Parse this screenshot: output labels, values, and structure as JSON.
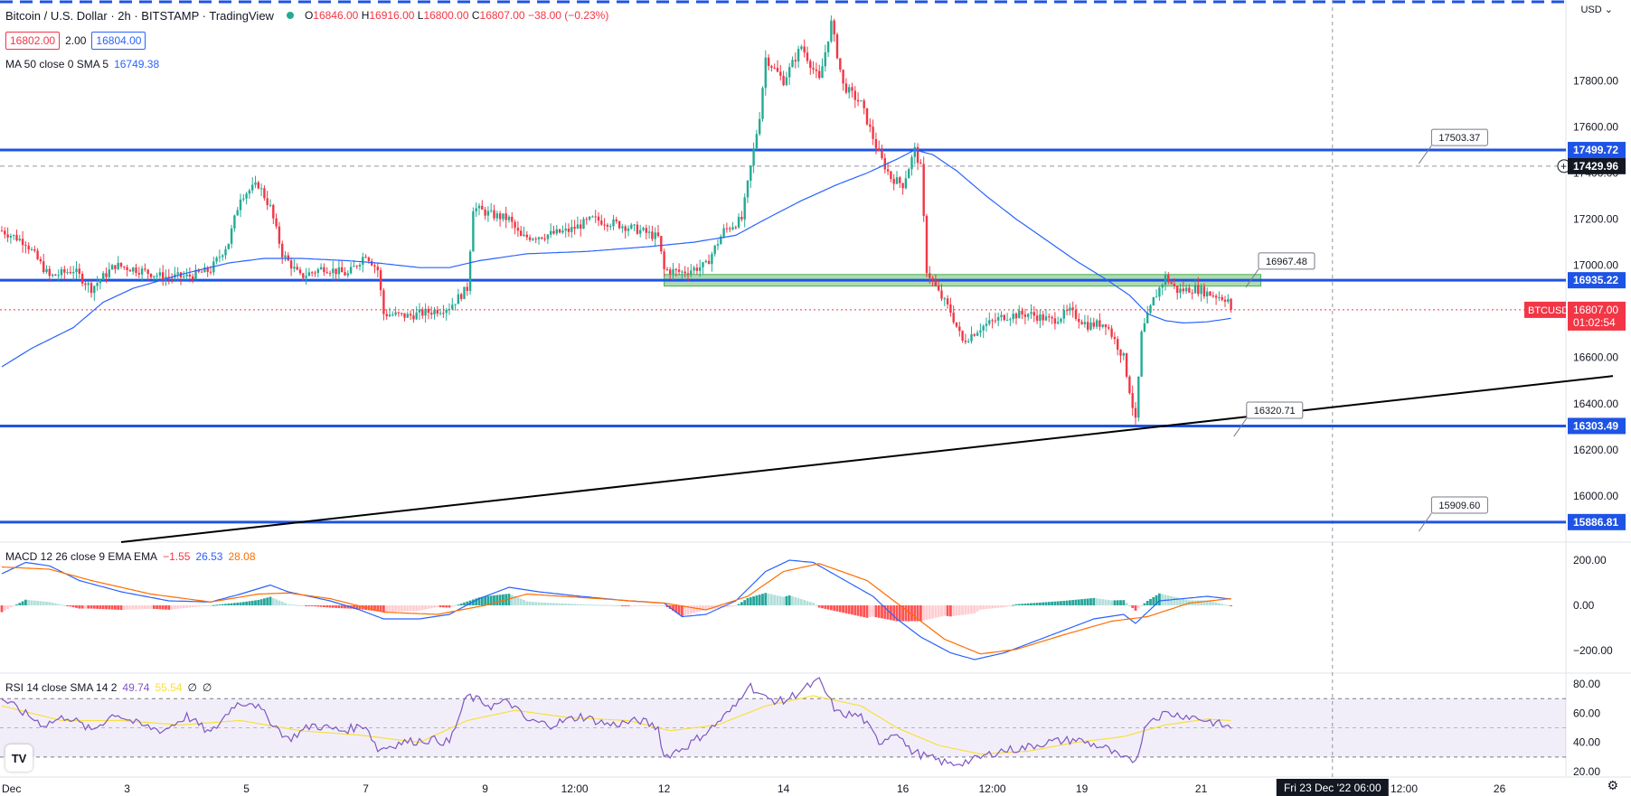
{
  "header": {
    "title": "Bitcoin / U.S. Dollar · 2h · BITSTAMP · TradingView",
    "open_label": "O",
    "open": "16846.00",
    "high_label": "H",
    "high": "16916.00",
    "low_label": "L",
    "low": "16800.00",
    "close_label": "C",
    "close": "16807.00",
    "change": "−38.00 (−0.23%)",
    "sell_price": "16802.00",
    "spread": "2.00",
    "buy_price": "16804.00",
    "ma_label": "MA 50 close 0 SMA 5",
    "ma_value": "16749.38",
    "currency": "USD"
  },
  "colors": {
    "up": "#22ab94",
    "down": "#f23645",
    "ma": "#2962ff",
    "hline": "#1e53e5",
    "trend": "#000000",
    "macd": "#2962ff",
    "signal": "#ff6d00",
    "rsi": "#7e57c2",
    "rsi_ma": "#f7e03c"
  },
  "chart_data": [
    {
      "type": "candlestick",
      "series_name": "BTCUSD",
      "ylim": [
        15800,
        18150
      ],
      "y_ticks": [
        "17800.00",
        "17600.00",
        "17400.00",
        "17200.00",
        "17000.00",
        "16800.00",
        "16600.00",
        "16400.00",
        "16200.00",
        "16000.00"
      ],
      "x_ticks": [
        "Dec",
        "3",
        "5",
        "7",
        "9",
        "12:00",
        "12",
        "14",
        "16",
        "12:00",
        "19",
        "21",
        "12:00",
        "26"
      ],
      "x_tick_index": [
        0,
        42,
        82,
        122,
        162,
        192,
        222,
        262,
        302,
        332,
        362,
        402,
        470,
        502
      ],
      "crosshair_label": "Fri 23 Dec '22  06:00",
      "crosshair_index": 446,
      "anchors": [
        [
          0,
          17150
        ],
        [
          8,
          17100
        ],
        [
          16,
          16950
        ],
        [
          24,
          16980
        ],
        [
          30,
          16900
        ],
        [
          38,
          17000
        ],
        [
          46,
          16980
        ],
        [
          54,
          16950
        ],
        [
          62,
          16950
        ],
        [
          70,
          16980
        ],
        [
          76,
          17100
        ],
        [
          80,
          17300
        ],
        [
          86,
          17350
        ],
        [
          90,
          17250
        ],
        [
          94,
          17050
        ],
        [
          100,
          16950
        ],
        [
          108,
          16990
        ],
        [
          116,
          16960
        ],
        [
          122,
          17050
        ],
        [
          126,
          16980
        ],
        [
          128,
          16790
        ],
        [
          136,
          16780
        ],
        [
          144,
          16800
        ],
        [
          150,
          16820
        ],
        [
          156,
          16900
        ],
        [
          158,
          17250
        ],
        [
          164,
          17220
        ],
        [
          170,
          17200
        ],
        [
          174,
          17120
        ],
        [
          182,
          17130
        ],
        [
          190,
          17150
        ],
        [
          198,
          17200
        ],
        [
          206,
          17180
        ],
        [
          214,
          17150
        ],
        [
          220,
          17120
        ],
        [
          222,
          16980
        ],
        [
          228,
          16970
        ],
        [
          236,
          17000
        ],
        [
          242,
          17150
        ],
        [
          248,
          17200
        ],
        [
          252,
          17500
        ],
        [
          254,
          17650
        ],
        [
          256,
          17900
        ],
        [
          262,
          17800
        ],
        [
          268,
          17950
        ],
        [
          274,
          17800
        ],
        [
          278,
          18050
        ],
        [
          282,
          17780
        ],
        [
          288,
          17700
        ],
        [
          294,
          17480
        ],
        [
          298,
          17380
        ],
        [
          302,
          17350
        ],
        [
          306,
          17500
        ],
        [
          308,
          17420
        ],
        [
          310,
          16980
        ],
        [
          314,
          16880
        ],
        [
          318,
          16800
        ],
        [
          322,
          16670
        ],
        [
          328,
          16730
        ],
        [
          336,
          16780
        ],
        [
          344,
          16790
        ],
        [
          352,
          16760
        ],
        [
          358,
          16800
        ],
        [
          364,
          16740
        ],
        [
          370,
          16750
        ],
        [
          376,
          16600
        ],
        [
          380,
          16320
        ],
        [
          382,
          16700
        ],
        [
          386,
          16850
        ],
        [
          390,
          16950
        ],
        [
          394,
          16890
        ],
        [
          400,
          16900
        ],
        [
          404,
          16880
        ],
        [
          412,
          16850
        ]
      ],
      "last_index": 412,
      "last_close": 16807.0,
      "last_label": "BTCUSD",
      "last_value": "16807.00",
      "last_timer": "01:02:54",
      "ma_anchors": [
        [
          0,
          16560
        ],
        [
          10,
          16640
        ],
        [
          24,
          16730
        ],
        [
          34,
          16840
        ],
        [
          44,
          16900
        ],
        [
          52,
          16930
        ],
        [
          60,
          16960
        ],
        [
          76,
          17010
        ],
        [
          88,
          17030
        ],
        [
          100,
          17030
        ],
        [
          116,
          17020
        ],
        [
          126,
          17010
        ],
        [
          140,
          16990
        ],
        [
          150,
          16990
        ],
        [
          160,
          17020
        ],
        [
          176,
          17050
        ],
        [
          196,
          17060
        ],
        [
          216,
          17080
        ],
        [
          232,
          17100
        ],
        [
          246,
          17130
        ],
        [
          256,
          17200
        ],
        [
          268,
          17280
        ],
        [
          280,
          17350
        ],
        [
          290,
          17400
        ],
        [
          300,
          17460
        ],
        [
          306,
          17500
        ],
        [
          312,
          17480
        ],
        [
          320,
          17410
        ],
        [
          330,
          17300
        ],
        [
          340,
          17200
        ],
        [
          350,
          17110
        ],
        [
          360,
          17020
        ],
        [
          370,
          16940
        ],
        [
          378,
          16870
        ],
        [
          384,
          16790
        ],
        [
          390,
          16760
        ],
        [
          396,
          16750
        ],
        [
          404,
          16755
        ],
        [
          412,
          16770
        ]
      ],
      "horizontal_levels": [
        {
          "value": 17499.72,
          "label": "17499.72"
        },
        {
          "value": 16935.22,
          "label": "16935.22"
        },
        {
          "value": 16303.49,
          "label": "16303.49"
        },
        {
          "value": 15886.81,
          "label": "15886.81"
        }
      ],
      "dashed_level": {
        "value": 17429.96,
        "label": "17429.96"
      },
      "trendline": {
        "start": [
          40,
          15800
        ],
        "end": [
          540,
          16520
        ]
      },
      "callouts": [
        {
          "label": "17503.37",
          "index": 478,
          "value": 17503.37
        },
        {
          "label": "16967.48",
          "index": 420,
          "value": 16967.48
        },
        {
          "label": "16320.71",
          "index": 416,
          "value": 16320.71
        },
        {
          "label": "15909.60",
          "index": 478,
          "value": 15909.6
        }
      ],
      "zone": {
        "from_index": 222,
        "to_index": 412,
        "top": 16960,
        "bottom": 16910
      }
    },
    {
      "type": "line",
      "name": "MACD",
      "legend": "MACD 12 26 close 9 EMA EMA",
      "values_text": [
        "−1.55",
        "26.53",
        "28.08"
      ],
      "ylim": [
        -260,
        240
      ],
      "y_ticks": [
        "200.00",
        "0.00",
        "−200.00"
      ],
      "macd_anchors": [
        [
          0,
          140
        ],
        [
          8,
          190
        ],
        [
          16,
          175
        ],
        [
          26,
          110
        ],
        [
          40,
          60
        ],
        [
          56,
          20
        ],
        [
          70,
          15
        ],
        [
          80,
          50
        ],
        [
          90,
          90
        ],
        [
          96,
          60
        ],
        [
          110,
          20
        ],
        [
          120,
          -20
        ],
        [
          128,
          -60
        ],
        [
          140,
          -60
        ],
        [
          150,
          -40
        ],
        [
          160,
          30
        ],
        [
          170,
          80
        ],
        [
          180,
          60
        ],
        [
          194,
          40
        ],
        [
          210,
          20
        ],
        [
          222,
          10
        ],
        [
          228,
          -50
        ],
        [
          236,
          -40
        ],
        [
          246,
          20
        ],
        [
          256,
          150
        ],
        [
          264,
          200
        ],
        [
          272,
          190
        ],
        [
          280,
          130
        ],
        [
          292,
          40
        ],
        [
          300,
          -60
        ],
        [
          308,
          -140
        ],
        [
          318,
          -210
        ],
        [
          326,
          -240
        ],
        [
          336,
          -210
        ],
        [
          346,
          -160
        ],
        [
          356,
          -110
        ],
        [
          366,
          -60
        ],
        [
          376,
          -40
        ],
        [
          380,
          -80
        ],
        [
          388,
          20
        ],
        [
          396,
          30
        ],
        [
          404,
          40
        ],
        [
          412,
          28
        ]
      ],
      "signal_anchors": [
        [
          0,
          170
        ],
        [
          16,
          160
        ],
        [
          30,
          110
        ],
        [
          50,
          50
        ],
        [
          70,
          15
        ],
        [
          86,
          50
        ],
        [
          96,
          55
        ],
        [
          110,
          30
        ],
        [
          128,
          -30
        ],
        [
          146,
          -40
        ],
        [
          162,
          0
        ],
        [
          176,
          50
        ],
        [
          200,
          30
        ],
        [
          222,
          10
        ],
        [
          236,
          -20
        ],
        [
          250,
          40
        ],
        [
          262,
          150
        ],
        [
          274,
          185
        ],
        [
          290,
          110
        ],
        [
          304,
          -30
        ],
        [
          316,
          -150
        ],
        [
          328,
          -215
        ],
        [
          340,
          -195
        ],
        [
          356,
          -130
        ],
        [
          372,
          -70
        ],
        [
          384,
          -50
        ],
        [
          398,
          10
        ],
        [
          412,
          30
        ]
      ]
    },
    {
      "type": "line",
      "name": "RSI",
      "legend": "RSI 14 close SMA 14 2",
      "values_text": [
        "49.74",
        "55.54",
        "∅",
        "∅"
      ],
      "ylim": [
        20,
        85
      ],
      "band": [
        30,
        70
      ],
      "y_ticks": [
        "80.00",
        "60.00",
        "40.00",
        "20.00"
      ],
      "rsi_anchors": [
        [
          0,
          70
        ],
        [
          6,
          62
        ],
        [
          14,
          52
        ],
        [
          22,
          58
        ],
        [
          30,
          48
        ],
        [
          38,
          60
        ],
        [
          46,
          52
        ],
        [
          54,
          48
        ],
        [
          62,
          58
        ],
        [
          70,
          46
        ],
        [
          78,
          66
        ],
        [
          84,
          68
        ],
        [
          90,
          55
        ],
        [
          96,
          42
        ],
        [
          104,
          52
        ],
        [
          114,
          48
        ],
        [
          122,
          52
        ],
        [
          126,
          35
        ],
        [
          134,
          40
        ],
        [
          144,
          42
        ],
        [
          150,
          40
        ],
        [
          156,
          72
        ],
        [
          164,
          65
        ],
        [
          170,
          68
        ],
        [
          176,
          55
        ],
        [
          184,
          52
        ],
        [
          194,
          58
        ],
        [
          204,
          52
        ],
        [
          214,
          55
        ],
        [
          220,
          50
        ],
        [
          222,
          30
        ],
        [
          230,
          38
        ],
        [
          238,
          50
        ],
        [
          246,
          65
        ],
        [
          250,
          80
        ],
        [
          256,
          70
        ],
        [
          262,
          68
        ],
        [
          270,
          78
        ],
        [
          274,
          82
        ],
        [
          280,
          60
        ],
        [
          288,
          58
        ],
        [
          294,
          40
        ],
        [
          300,
          48
        ],
        [
          304,
          35
        ],
        [
          310,
          30
        ],
        [
          318,
          25
        ],
        [
          326,
          28
        ],
        [
          334,
          34
        ],
        [
          342,
          36
        ],
        [
          350,
          40
        ],
        [
          360,
          42
        ],
        [
          370,
          36
        ],
        [
          376,
          28
        ],
        [
          380,
          28
        ],
        [
          384,
          55
        ],
        [
          390,
          60
        ],
        [
          398,
          58
        ],
        [
          404,
          55
        ],
        [
          412,
          50
        ]
      ],
      "rsi_ma_anchors": [
        [
          0,
          65
        ],
        [
          20,
          55
        ],
        [
          40,
          55
        ],
        [
          60,
          52
        ],
        [
          80,
          55
        ],
        [
          100,
          48
        ],
        [
          120,
          45
        ],
        [
          140,
          40
        ],
        [
          156,
          55
        ],
        [
          172,
          62
        ],
        [
          190,
          57
        ],
        [
          210,
          55
        ],
        [
          224,
          48
        ],
        [
          240,
          52
        ],
        [
          256,
          65
        ],
        [
          272,
          72
        ],
        [
          288,
          65
        ],
        [
          300,
          50
        ],
        [
          314,
          38
        ],
        [
          328,
          32
        ],
        [
          344,
          34
        ],
        [
          360,
          40
        ],
        [
          376,
          44
        ],
        [
          390,
          52
        ],
        [
          404,
          56
        ],
        [
          412,
          55
        ]
      ]
    }
  ]
}
